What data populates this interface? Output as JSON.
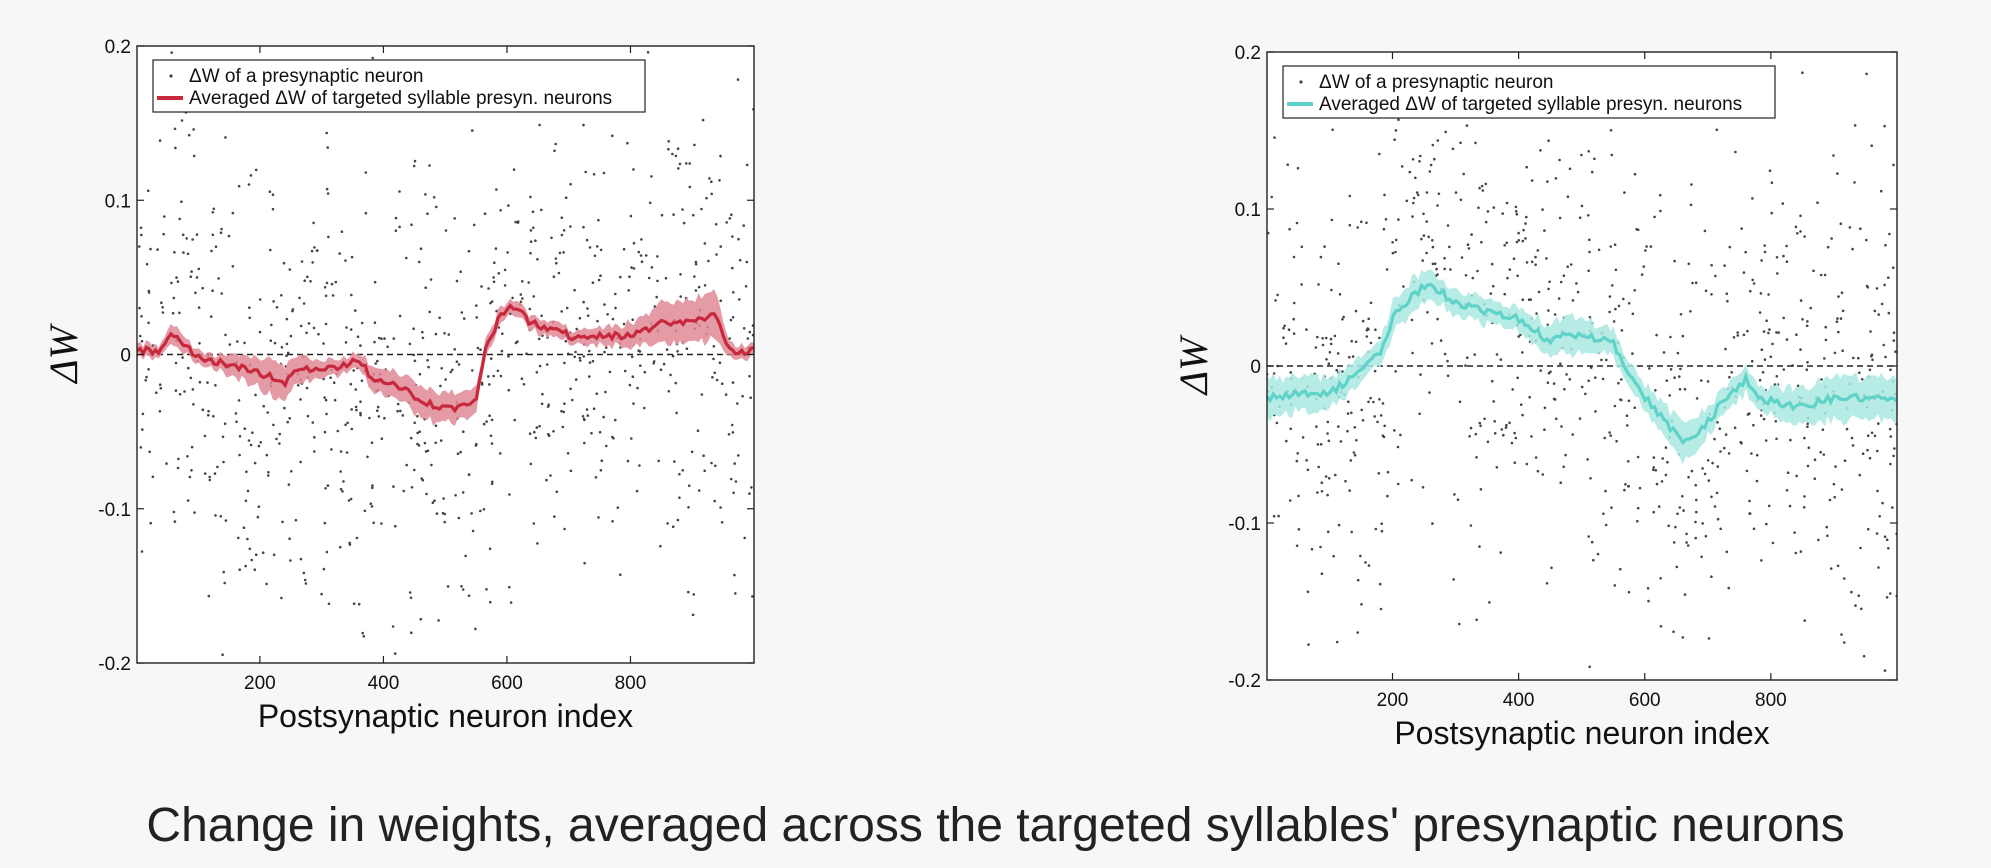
{
  "caption": "Change in weights, averaged across the targeted syllables' presynaptic neurons",
  "chart_data": [
    {
      "type": "scatter",
      "xlabel": "Postsynaptic neuron index",
      "ylabel": "ΔW",
      "xlim": [
        1,
        1000
      ],
      "ylim": [
        -0.2,
        0.2
      ],
      "x_ticks": [
        200,
        400,
        600,
        800
      ],
      "y_ticks": [
        -0.2,
        -0.1,
        0,
        0.1,
        0.2
      ],
      "y_tick_labels": [
        "-0.2",
        "-0.1",
        "0",
        "0.1",
        "0.2"
      ],
      "zero_line": true,
      "grid": false,
      "legend_placement": "top-left",
      "series": [
        {
          "name": "ΔW of a presynaptic neuron",
          "kind": "scatter",
          "color": "#444444",
          "points_shown": 900,
          "spread_sd": 0.075
        },
        {
          "name": "Averaged ΔW of targeted syllable presyn. neurons",
          "kind": "line-with-band",
          "color": "#c8283c",
          "band_color": "#e08a96",
          "x": [
            1,
            40,
            60,
            100,
            150,
            200,
            240,
            270,
            300,
            340,
            360,
            380,
            420,
            460,
            490,
            520,
            550,
            565,
            590,
            610,
            640,
            680,
            720,
            760,
            800,
            850,
            900,
            940,
            960,
            1000
          ],
          "y": [
            0.002,
            0.003,
            0.013,
            -0.003,
            -0.007,
            -0.012,
            -0.018,
            -0.008,
            -0.01,
            -0.006,
            -0.003,
            -0.015,
            -0.02,
            -0.03,
            -0.035,
            -0.036,
            -0.03,
            0.003,
            0.027,
            0.032,
            0.02,
            0.015,
            0.01,
            0.012,
            0.012,
            0.02,
            0.022,
            0.025,
            0.003,
            0.002
          ],
          "band_halfwidth": [
            0.004,
            0.004,
            0.006,
            0.004,
            0.006,
            0.01,
            0.012,
            0.008,
            0.005,
            0.005,
            0.005,
            0.008,
            0.008,
            0.01,
            0.01,
            0.01,
            0.008,
            0.006,
            0.005,
            0.005,
            0.005,
            0.005,
            0.005,
            0.006,
            0.008,
            0.012,
            0.015,
            0.015,
            0.005,
            0.004
          ]
        }
      ]
    },
    {
      "type": "scatter",
      "xlabel": "Postsynaptic neuron index",
      "ylabel": "ΔW",
      "xlim": [
        1,
        1000
      ],
      "ylim": [
        -0.2,
        0.2
      ],
      "x_ticks": [
        200,
        400,
        600,
        800
      ],
      "y_ticks": [
        -0.2,
        -0.1,
        0,
        0.1,
        0.2
      ],
      "y_tick_labels": [
        "-0.2",
        "-0.1",
        "0",
        "0.1",
        "0.2"
      ],
      "zero_line": true,
      "grid": false,
      "legend_placement": "top-left",
      "series": [
        {
          "name": "ΔW of a presynaptic neuron",
          "kind": "scatter",
          "color": "#444444",
          "points_shown": 900,
          "spread_sd": 0.075
        },
        {
          "name": "Averaged ΔW of targeted syllable presyn. neurons",
          "kind": "line-with-band",
          "color": "#5fd3c8",
          "band_color": "#a9e8e2",
          "x": [
            1,
            50,
            100,
            150,
            180,
            200,
            230,
            260,
            300,
            350,
            400,
            450,
            480,
            500,
            520,
            550,
            575,
            600,
            630,
            660,
            690,
            720,
            760,
            780,
            820,
            860,
            900,
            950,
            1000
          ],
          "y": [
            -0.02,
            -0.018,
            -0.018,
            -0.003,
            0.008,
            0.03,
            0.045,
            0.052,
            0.04,
            0.035,
            0.03,
            0.015,
            0.02,
            0.02,
            0.018,
            0.015,
            -0.005,
            -0.02,
            -0.035,
            -0.048,
            -0.04,
            -0.025,
            -0.008,
            -0.02,
            -0.025,
            -0.025,
            -0.02,
            -0.02,
            -0.022
          ],
          "band_halfwidth": [
            0.012,
            0.012,
            0.01,
            0.008,
            0.008,
            0.01,
            0.01,
            0.01,
            0.008,
            0.008,
            0.008,
            0.01,
            0.012,
            0.012,
            0.01,
            0.008,
            0.008,
            0.008,
            0.01,
            0.012,
            0.01,
            0.008,
            0.008,
            0.008,
            0.01,
            0.012,
            0.014,
            0.014,
            0.014
          ]
        }
      ]
    }
  ]
}
